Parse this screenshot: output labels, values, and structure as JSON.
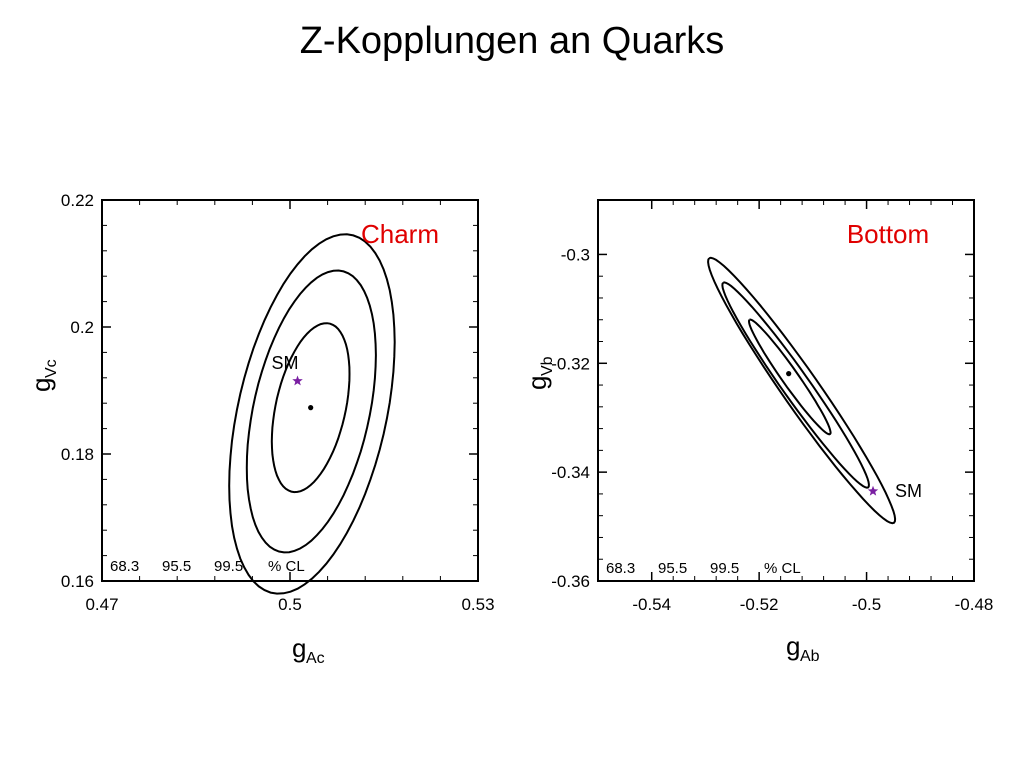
{
  "slide": {
    "title": "Z-Kopplungen an Quarks"
  },
  "colors": {
    "label": "#e00000",
    "sm_marker": "#7a1fa2",
    "contour": "#000000",
    "axis": "#000000"
  },
  "chart_data": [
    {
      "type": "contour",
      "label": "Charm",
      "xlabel": "g",
      "xlabel_sub": "Ac",
      "ylabel": "g",
      "ylabel_sub": "Vc",
      "xlim": [
        0.47,
        0.53
      ],
      "ylim": [
        0.16,
        0.22
      ],
      "xticks": [
        0.47,
        0.5,
        0.53
      ],
      "xtick_labels": [
        "0.47",
        "0.5",
        "0.53"
      ],
      "yticks": [
        0.16,
        0.18,
        0.2,
        0.22
      ],
      "ytick_labels": [
        "0.16",
        "0.18",
        "0.2",
        "0.22"
      ],
      "best_fit": [
        0.5033,
        0.1873
      ],
      "sm": {
        "label": "SM",
        "point": [
          0.5012,
          0.1915
        ]
      },
      "cl_levels": [
        "68.3",
        "95.5",
        "99.5"
      ],
      "cl_unit": "% CL",
      "contours": [
        {
          "level": "68.3",
          "center": [
            0.5033,
            0.1873
          ],
          "x_halfwidth": 0.0062,
          "y_halfheight": 0.0133,
          "tilt": 0.4
        },
        {
          "level": "95.5",
          "center": [
            0.5034,
            0.1867
          ],
          "x_halfwidth": 0.0103,
          "y_halfheight": 0.0222,
          "tilt": 0.4
        },
        {
          "level": "99.5",
          "center": [
            0.5035,
            0.1863
          ],
          "x_halfwidth": 0.0132,
          "y_halfheight": 0.0283,
          "tilt": 0.4
        }
      ]
    },
    {
      "type": "contour",
      "label": "Bottom",
      "xlabel": "g",
      "xlabel_sub": "Ab",
      "ylabel": "g",
      "ylabel_sub": "Vb",
      "xlim": [
        -0.55,
        -0.48
      ],
      "ylim": [
        -0.36,
        -0.29
      ],
      "xticks": [
        -0.54,
        -0.52,
        -0.5,
        -0.48
      ],
      "xtick_labels": [
        "-0.54",
        "-0.52",
        "-0.5",
        "-0.48"
      ],
      "yticks": [
        -0.36,
        -0.34,
        -0.32,
        -0.3
      ],
      "ytick_labels": [
        "-0.36",
        "-0.34",
        "-0.32",
        "-0.3"
      ],
      "best_fit": [
        -0.5145,
        -0.3219
      ],
      "sm": {
        "label": "SM",
        "point": [
          -0.4988,
          -0.3435
        ]
      },
      "cl_levels": [
        "68.3",
        "95.5",
        "99.5"
      ],
      "cl_unit": "% CL",
      "contours": [
        {
          "level": "68.3",
          "center": [
            -0.5143,
            -0.3225
          ],
          "axis_a": [
            -0.0075,
            0.0105
          ],
          "axis_b": [
            0.0012,
            0.0009
          ]
        },
        {
          "level": "95.5",
          "center": [
            -0.5132,
            -0.324
          ],
          "axis_a": [
            -0.0135,
            0.0188
          ],
          "axis_b": [
            0.002,
            0.0015
          ]
        },
        {
          "level": "99.5",
          "center": [
            -0.5121,
            -0.325
          ],
          "axis_a": [
            -0.0172,
            0.0243
          ],
          "axis_b": [
            0.0027,
            0.002
          ]
        }
      ]
    }
  ]
}
